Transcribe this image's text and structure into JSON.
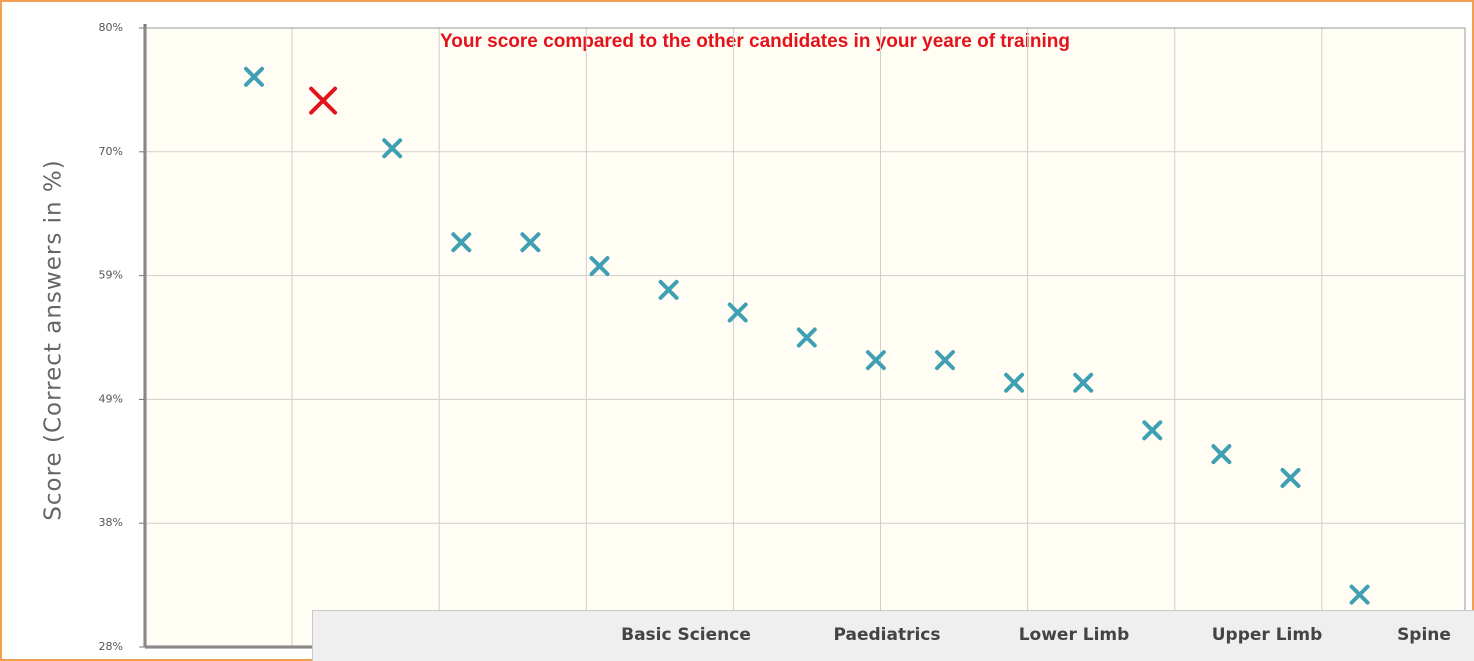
{
  "chart_data": {
    "type": "scatter",
    "title": "Your score compared to the other candidates in your yeare of training",
    "y_label": "Score (Correct answers in %)",
    "categories": [
      null,
      null,
      null,
      null,
      null,
      null,
      null,
      null,
      null,
      null,
      null,
      null,
      null,
      null,
      null,
      null,
      null
    ],
    "values": [
      75.9,
      73.9,
      69.9,
      62.0,
      62.0,
      60.0,
      58.0,
      56.1,
      54.0,
      52.1,
      52.1,
      50.2,
      50.2,
      46.2,
      44.2,
      42.2,
      32.4
    ],
    "colors": [
      "#3fa0b3",
      "#e3121b",
      "#3fa0b3",
      "#3fa0b3",
      "#3fa0b3",
      "#3fa0b3",
      "#3fa0b3",
      "#3fa0b3",
      "#3fa0b3",
      "#3fa0b3",
      "#3fa0b3",
      "#3fa0b3",
      "#3fa0b3",
      "#3fa0b3",
      "#3fa0b3",
      "#3fa0b3",
      "#3fa0b3"
    ],
    "ylim": [
      28,
      80
    ],
    "yticks": [
      {
        "value": 28,
        "label": "28%"
      },
      {
        "value": 38.4,
        "label": "38%"
      },
      {
        "value": 48.8,
        "label": "49%"
      },
      {
        "value": 59.2,
        "label": "59%"
      },
      {
        "value": 69.6,
        "label": "70%"
      },
      {
        "value": 80,
        "label": "80%"
      }
    ],
    "grid": true
  },
  "tabs": [
    "Basic Science",
    "Paediatrics",
    "Lower Limb",
    "Upper Limb",
    "Spine"
  ]
}
